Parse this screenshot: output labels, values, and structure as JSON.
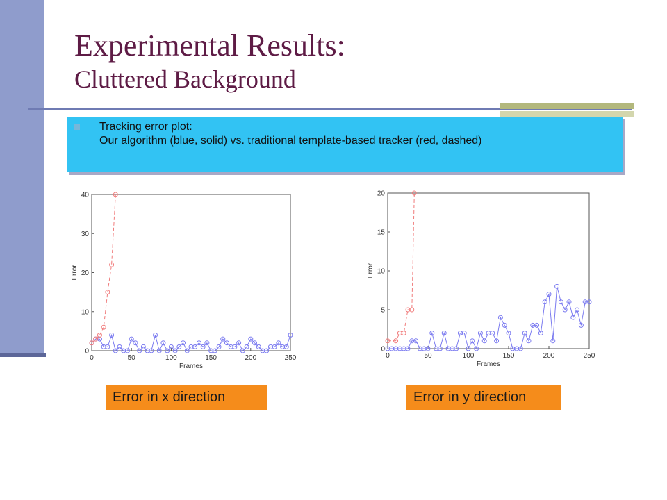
{
  "slide": {
    "title_line1": "Experimental Results:",
    "title_line2": "Cluttered Background",
    "bullet_line1": "Tracking error plot:",
    "bullet_line2": "Our algorithm (blue, solid) vs. traditional template-based tracker (red, dashed)",
    "caption_x": "Error in x direction",
    "caption_y": "Error in y direction"
  },
  "colors": {
    "ours": "#7b7bf0",
    "traditional": "#f07b7b",
    "title": "#5e1b45"
  },
  "chart_data": [
    {
      "type": "line",
      "xlabel": "Frames",
      "ylabel": "Error",
      "xlim": [
        0,
        250
      ],
      "ylim": [
        0,
        40
      ],
      "xticks": [
        0,
        50,
        100,
        150,
        200,
        250
      ],
      "yticks": [
        0,
        10,
        20,
        30,
        40
      ],
      "grid": false,
      "series": [
        {
          "style": "solid",
          "color": "#7b7bf0",
          "x": [
            0,
            5,
            10,
            15,
            20,
            25,
            30,
            35,
            40,
            45,
            50,
            55,
            60,
            65,
            70,
            75,
            80,
            85,
            90,
            95,
            100,
            105,
            110,
            115,
            120,
            125,
            130,
            135,
            140,
            145,
            150,
            155,
            160,
            165,
            170,
            175,
            180,
            185,
            190,
            195,
            200,
            205,
            210,
            215,
            220,
            225,
            230,
            235,
            240,
            245,
            250
          ],
          "y": [
            2,
            3,
            3,
            1,
            1,
            4,
            0,
            1,
            0,
            0,
            3,
            2,
            0,
            1,
            0,
            0,
            4,
            0,
            2,
            0,
            1,
            0,
            1,
            2,
            0,
            1,
            1,
            2,
            1,
            2,
            0,
            0,
            1,
            3,
            2,
            1,
            1,
            2,
            0,
            1,
            3,
            2,
            1,
            0,
            0,
            1,
            1,
            2,
            1,
            1,
            4
          ]
        },
        {
          "style": "dashed",
          "color": "#f07b7b",
          "x": [
            0,
            5,
            10,
            15,
            20,
            25,
            30
          ],
          "y": [
            2,
            3,
            4,
            6,
            15,
            22,
            40
          ]
        }
      ]
    },
    {
      "type": "line",
      "xlabel": "Frames",
      "ylabel": "Error",
      "xlim": [
        0,
        250
      ],
      "ylim": [
        0,
        20
      ],
      "xticks": [
        0,
        50,
        100,
        150,
        200,
        250
      ],
      "yticks": [
        0,
        5,
        10,
        15,
        20
      ],
      "grid": false,
      "series": [
        {
          "style": "solid",
          "color": "#7b7bf0",
          "x": [
            0,
            5,
            10,
            15,
            20,
            25,
            30,
            35,
            40,
            45,
            50,
            55,
            60,
            65,
            70,
            75,
            80,
            85,
            90,
            95,
            100,
            105,
            110,
            115,
            120,
            125,
            130,
            135,
            140,
            145,
            150,
            155,
            160,
            165,
            170,
            175,
            180,
            185,
            190,
            195,
            200,
            205,
            210,
            215,
            220,
            225,
            230,
            235,
            240,
            245,
            250
          ],
          "y": [
            0,
            0,
            0,
            0,
            0,
            0,
            1,
            1,
            0,
            0,
            0,
            2,
            0,
            0,
            2,
            0,
            0,
            0,
            2,
            2,
            0,
            1,
            0,
            2,
            1,
            2,
            2,
            1,
            4,
            3,
            2,
            0,
            0,
            0,
            2,
            1,
            3,
            3,
            2,
            6,
            7,
            1,
            8,
            6,
            5,
            6,
            4,
            5,
            3,
            6,
            6
          ]
        },
        {
          "style": "dashed",
          "color": "#f07b7b",
          "x": [
            0,
            10,
            15,
            20,
            25,
            30,
            33
          ],
          "y": [
            1,
            1,
            2,
            2,
            5,
            5,
            20
          ]
        }
      ]
    }
  ]
}
